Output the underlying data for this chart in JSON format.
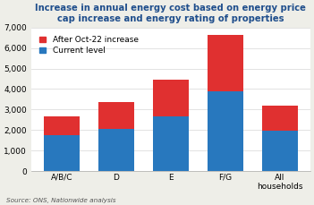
{
  "categories": [
    "A/B/C",
    "D",
    "E",
    "F/G",
    "All\nhouseholds"
  ],
  "current_level": [
    1750,
    2050,
    2650,
    3900,
    1980
  ],
  "after_increase": [
    900,
    1300,
    1800,
    2750,
    1200
  ],
  "current_color": "#2878be",
  "increase_color": "#e03030",
  "title_line1": "Increase in annual energy cost based on energy price",
  "title_line2": "cap increase and energy rating of properties",
  "title_color": "#1f4e8c",
  "ylim": [
    0,
    7000
  ],
  "yticks": [
    0,
    1000,
    2000,
    3000,
    4000,
    5000,
    6000,
    7000
  ],
  "legend_current": "Current level",
  "legend_increase": "After Oct-22 increase",
  "source_text": "Source: ONS, Nationwide analysis",
  "fig_bg_color": "#eeeee8",
  "plot_bg_color": "#ffffff",
  "title_fontsize": 7.2,
  "axis_fontsize": 6.5,
  "legend_fontsize": 6.5,
  "source_fontsize": 5.2,
  "bar_width": 0.65
}
